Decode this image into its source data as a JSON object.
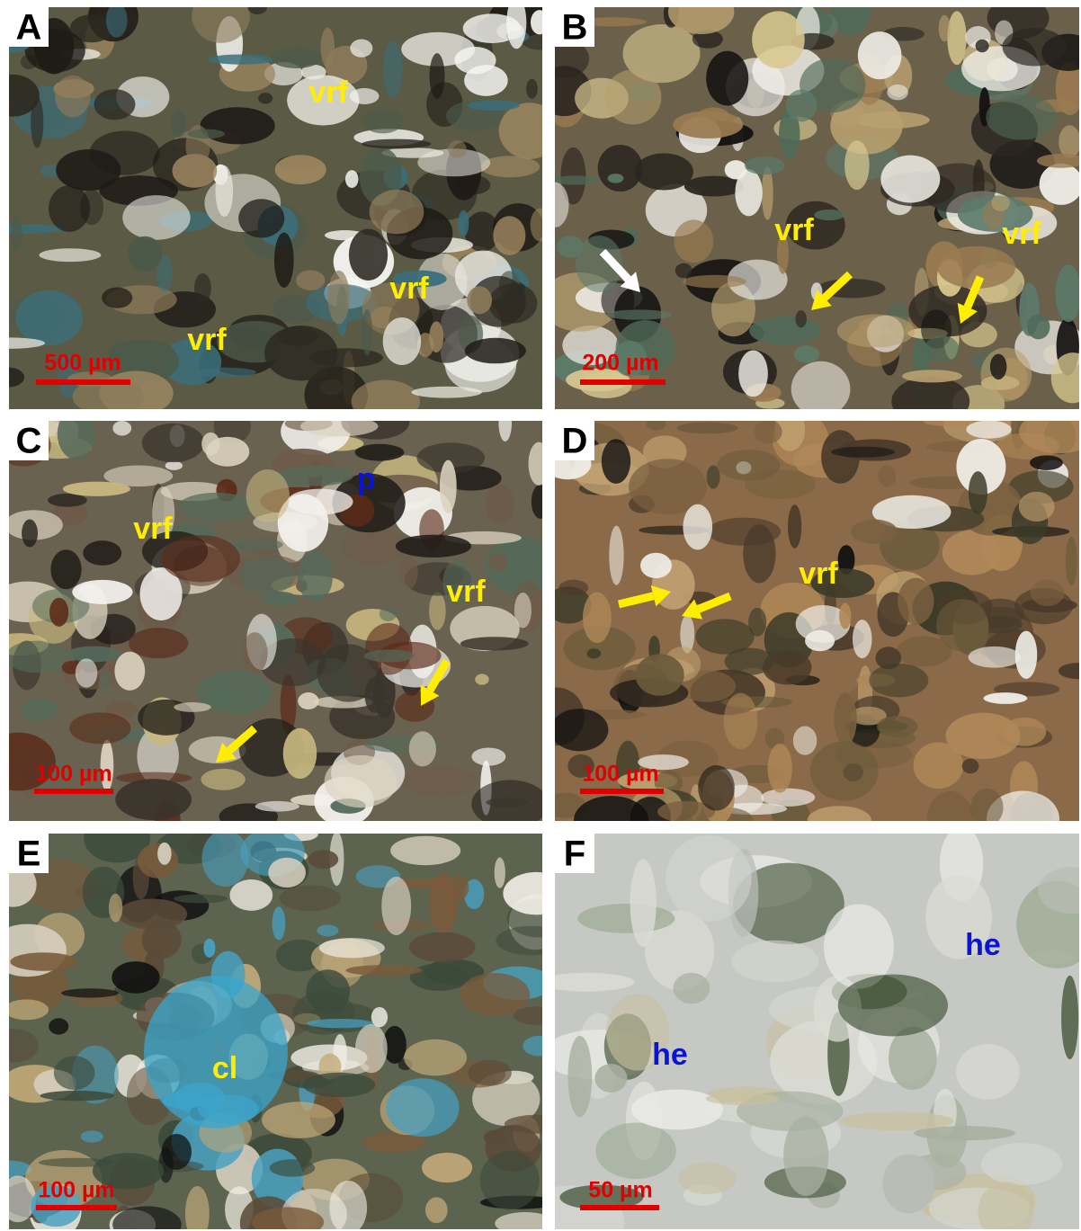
{
  "panels": [
    {
      "letter": "A",
      "labels": [
        "vrf",
        "vrf",
        "vrf"
      ],
      "scale_bar": "500 µm"
    },
    {
      "letter": "B",
      "labels": [
        "vrf",
        "vrf"
      ],
      "scale_bar": "200 µm"
    },
    {
      "letter": "C",
      "labels": [
        "vrf",
        "p",
        "vrf"
      ],
      "scale_bar": "100 µm"
    },
    {
      "letter": "D",
      "labels": [
        "vrf"
      ],
      "scale_bar": "100 µm"
    },
    {
      "letter": "E",
      "labels": [
        "cl"
      ],
      "scale_bar": "100 µm"
    },
    {
      "letter": "F",
      "labels": [
        "he",
        "he"
      ],
      "scale_bar": "50 µm"
    }
  ]
}
